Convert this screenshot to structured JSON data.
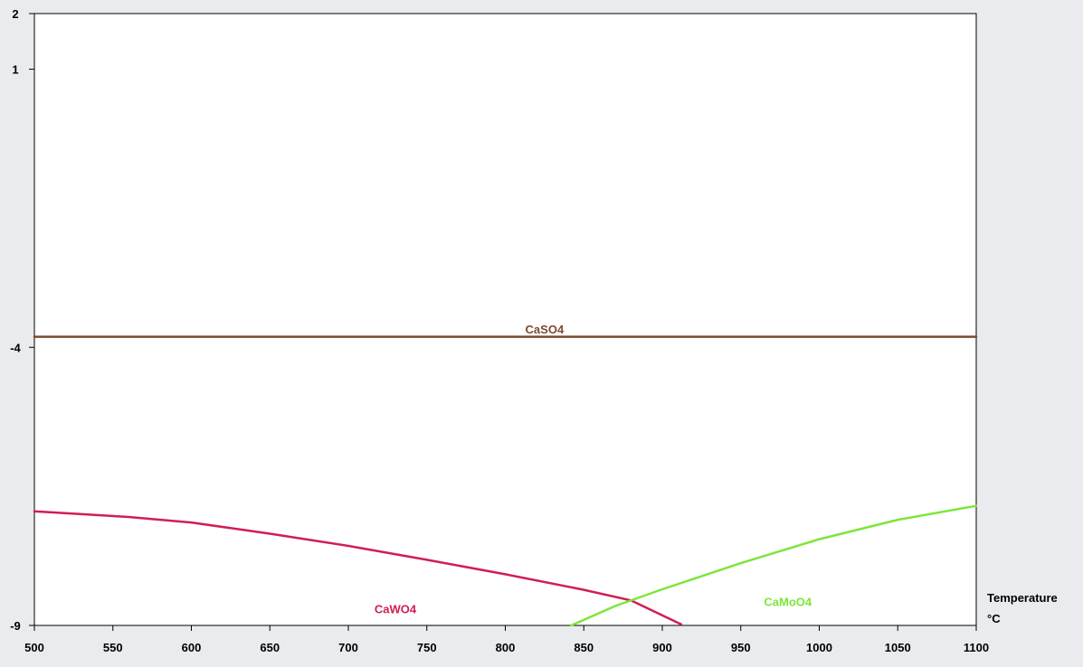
{
  "chart_data": {
    "type": "line",
    "title": "",
    "xlabel": "Temperature",
    "xunit": "°C",
    "ylabel": "",
    "xlim": [
      500,
      1100
    ],
    "ylim": [
      -9,
      2
    ],
    "x_ticks": [
      500,
      550,
      600,
      650,
      700,
      750,
      800,
      850,
      900,
      950,
      1000,
      1050,
      1100
    ],
    "y_ticks": [
      -9,
      -4,
      1,
      2
    ],
    "grid": false,
    "legend": "none",
    "colors": {
      "background": "#eaebee",
      "plot_background": "#ffffff",
      "axis": "#000000"
    },
    "series": [
      {
        "name": "CaSO4",
        "color": "#7b4a2d",
        "label_at": [
          825,
          -3.75
        ],
        "points": [
          [
            500,
            -3.81
          ],
          [
            1100,
            -3.81
          ]
        ]
      },
      {
        "name": "CaWO4",
        "color": "#d01e52",
        "label_at": [
          730,
          -8.78
        ],
        "points": [
          [
            500,
            -6.95
          ],
          [
            560,
            -7.05
          ],
          [
            600,
            -7.15
          ],
          [
            650,
            -7.35
          ],
          [
            700,
            -7.57
          ],
          [
            750,
            -7.82
          ],
          [
            800,
            -8.08
          ],
          [
            850,
            -8.36
          ],
          [
            880,
            -8.55
          ],
          [
            912,
            -8.98
          ]
        ]
      },
      {
        "name": "CaMoO4",
        "color": "#7ce63b",
        "label_at": [
          980,
          -8.65
        ],
        "points": [
          [
            842,
            -9.0
          ],
          [
            870,
            -8.65
          ],
          [
            900,
            -8.35
          ],
          [
            950,
            -7.88
          ],
          [
            1000,
            -7.45
          ],
          [
            1050,
            -7.1
          ],
          [
            1100,
            -6.85
          ]
        ]
      }
    ]
  }
}
